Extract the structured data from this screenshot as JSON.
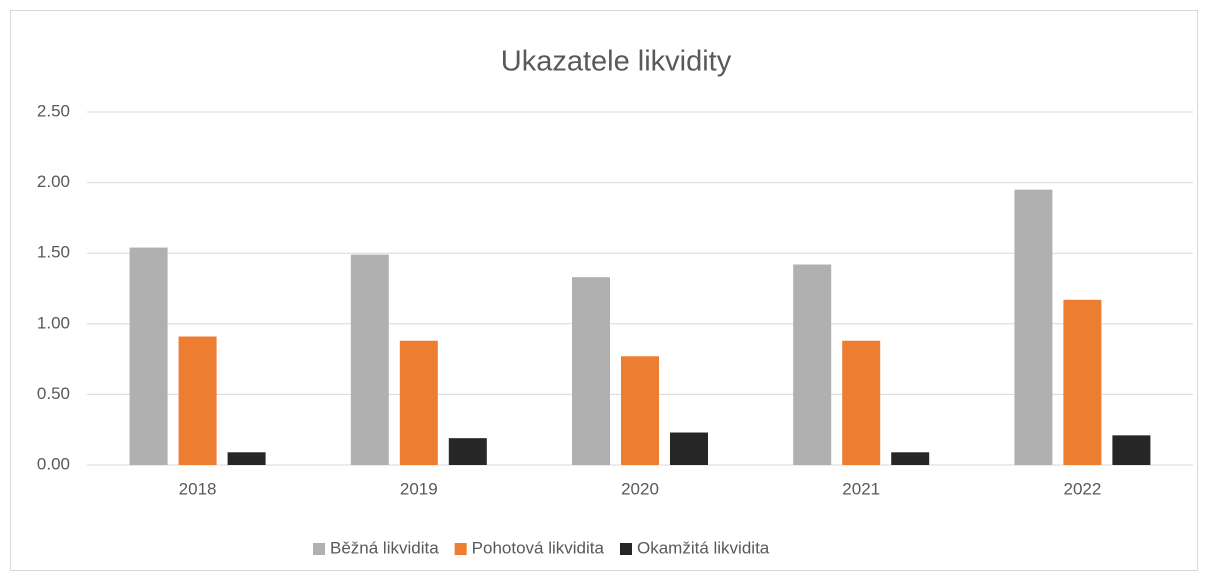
{
  "chart_data": {
    "type": "bar",
    "title": "Ukazatele likvidity",
    "categories": [
      "2018",
      "2019",
      "2020",
      "2021",
      "2022"
    ],
    "series": [
      {
        "name": "Běžná likvidita",
        "color": "#b0b0b0",
        "values": [
          1.54,
          1.49,
          1.33,
          1.42,
          1.95
        ]
      },
      {
        "name": "Pohotová likvidita",
        "color": "#ed7d31",
        "values": [
          0.91,
          0.88,
          0.77,
          0.88,
          1.17
        ]
      },
      {
        "name": "Okamžitá likvidita",
        "color": "#262626",
        "values": [
          0.09,
          0.19,
          0.23,
          0.09,
          0.21
        ]
      }
    ],
    "ylim": [
      0,
      2.5
    ],
    "yticks": [
      {
        "value": 0,
        "label": "0.00"
      },
      {
        "value": 0.5,
        "label": "0.50"
      },
      {
        "value": 1,
        "label": "1.00"
      },
      {
        "value": 1.5,
        "label": "1.50"
      },
      {
        "value": 2,
        "label": "2.00"
      },
      {
        "value": 2.5,
        "label": "2.50"
      }
    ],
    "grid": true,
    "legend": "bottom"
  }
}
